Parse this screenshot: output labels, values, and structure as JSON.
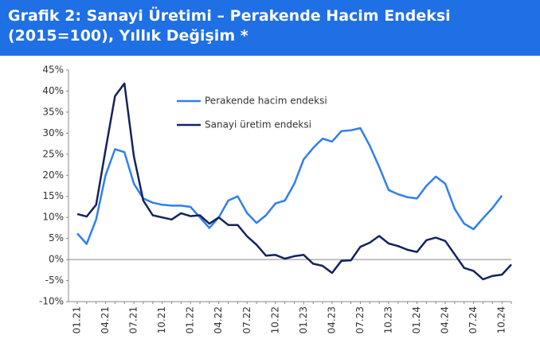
{
  "chart_data": {
    "type": "line",
    "title": "Grafik 2: Sanayi Üretimi – Perakende Hacim Endeksi (2015=100), Yıllık Değişim *",
    "categories": [
      "01.21",
      null,
      null,
      "04.21",
      null,
      null,
      "07.21",
      null,
      null,
      "10.21",
      null,
      null,
      "01.22",
      null,
      null,
      "04.22",
      null,
      null,
      "07.22",
      null,
      null,
      "10.22",
      null,
      null,
      "01.23",
      null,
      null,
      "04.23",
      null,
      null,
      "07.23",
      null,
      null,
      "10.23",
      null,
      null,
      "01.24",
      null,
      null,
      "04.24",
      null,
      null,
      "07.24",
      null,
      null,
      "10.24",
      null
    ],
    "series": [
      {
        "name": "Perakende hacim endeksi",
        "color": "#2f7ff0",
        "values": [
          6.2,
          3.7,
          9.5,
          20,
          26.2,
          25.5,
          18,
          14.5,
          13.5,
          13,
          12.8,
          12.8,
          12.5,
          10,
          7.5,
          10,
          14,
          15,
          11,
          8.7,
          10.5,
          13.3,
          14,
          18,
          23.8,
          26.5,
          28.7,
          28,
          30.5,
          30.7,
          31.2,
          27,
          22,
          16.5,
          15.5,
          14.8,
          14.5,
          17.5,
          19.7,
          18,
          12,
          8.5,
          7.2,
          9.8,
          12.2,
          15.2,
          null
        ]
      },
      {
        "name": "Sanayi üretim endeksi",
        "color": "#14235e",
        "values": [
          10.8,
          10.2,
          13,
          26,
          38.8,
          41.8,
          24.5,
          14,
          10.5,
          10,
          9.5,
          11,
          10.3,
          10.5,
          8.5,
          10,
          8.2,
          8.2,
          5.5,
          3.5,
          0.9,
          1.1,
          0.2,
          0.8,
          1.1,
          -1,
          -1.5,
          -3.2,
          -0.3,
          -0.2,
          3,
          4,
          5.6,
          3.8,
          3.2,
          2.3,
          1.8,
          4.6,
          5.2,
          4.4,
          1.2,
          -2,
          -2.7,
          -4.7,
          -3.9,
          -3.6,
          -1.2
        ]
      }
    ],
    "ylim": [
      -10,
      45
    ],
    "yticks": [
      {
        "value": -10,
        "label": "-10%"
      },
      {
        "value": -5,
        "label": "-5%"
      },
      {
        "value": 0,
        "label": "0%"
      },
      {
        "value": 5,
        "label": "5%"
      },
      {
        "value": 10,
        "label": "10%"
      },
      {
        "value": 15,
        "label": "15%"
      },
      {
        "value": 20,
        "label": "20%"
      },
      {
        "value": 25,
        "label": "25%"
      },
      {
        "value": 30,
        "label": "30%"
      },
      {
        "value": 35,
        "label": "35%"
      },
      {
        "value": 40,
        "label": "40%"
      },
      {
        "value": 45,
        "label": "45%"
      }
    ]
  }
}
